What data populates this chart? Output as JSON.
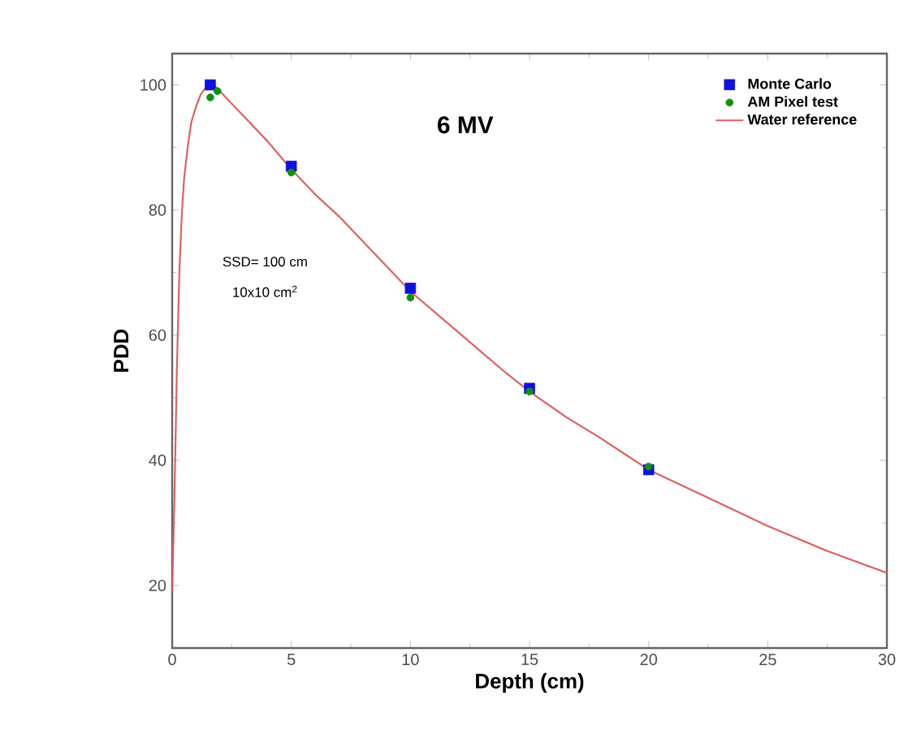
{
  "chart_data": {
    "type": "scatter",
    "title": "6 MV",
    "xlabel": "Depth (cm)",
    "ylabel": "PDD",
    "annotations": [
      "SSD= 100 cm",
      "10x10 cm$^{2}$"
    ],
    "xlim": [
      0,
      30
    ],
    "ylim": [
      10,
      105
    ],
    "xticks": [
      0,
      5,
      10,
      15,
      20,
      25,
      30
    ],
    "yticks": [
      20,
      40,
      60,
      80,
      100
    ],
    "grid": false,
    "legend": "top right",
    "series": [
      {
        "name": "Monte Carlo",
        "marker": "square",
        "color": "#1010e0",
        "x": [
          1.6,
          5,
          10,
          15,
          20
        ],
        "values": [
          100,
          87,
          67.5,
          51.5,
          38.5
        ]
      },
      {
        "name": "AM Pixel test",
        "marker": "circle",
        "color": "#109010",
        "x": [
          1.6,
          1.9,
          5,
          10,
          15,
          20
        ],
        "values": [
          98,
          99,
          86,
          66,
          51,
          39
        ]
      },
      {
        "name": "Water reference",
        "type": "line",
        "marker": "none",
        "line_style": "solid",
        "color": "#e06060",
        "x": [
          0,
          0.1,
          0.2,
          0.3,
          0.4,
          0.5,
          0.65,
          0.8,
          1,
          1.2,
          1.4,
          1.6,
          1.8,
          2,
          2.5,
          3,
          4,
          5,
          6,
          7,
          8.5,
          10,
          12,
          14,
          15,
          16.5,
          18,
          20,
          22.5,
          25,
          27.5,
          30
        ],
        "values": [
          19,
          35,
          55,
          70,
          79,
          85,
          90,
          94,
          96.5,
          98.5,
          99.5,
          100,
          99.8,
          99,
          97,
          95,
          91,
          86.5,
          82.5,
          79,
          73,
          67,
          60.5,
          54,
          51,
          47,
          43.5,
          38.5,
          34,
          29.5,
          25.5,
          22
        ]
      }
    ]
  }
}
